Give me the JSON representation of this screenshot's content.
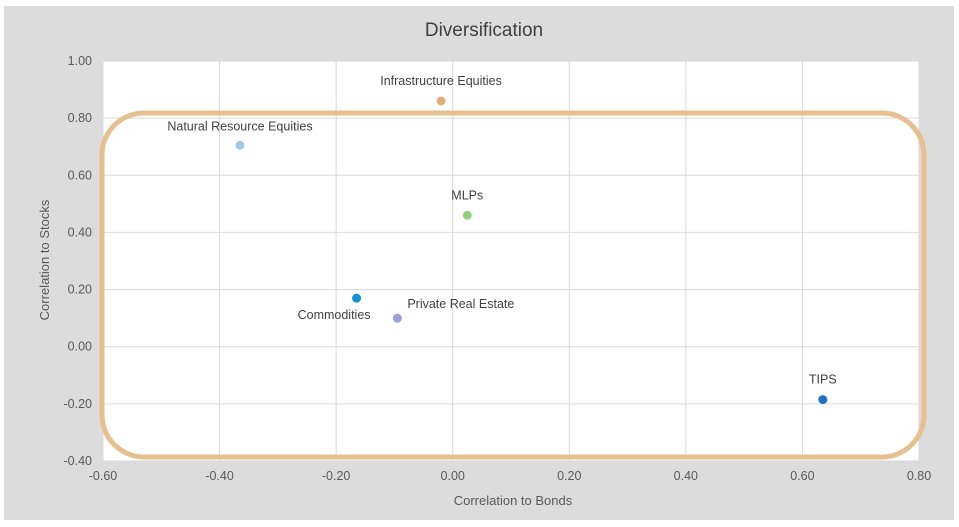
{
  "chart_data": {
    "type": "scatter",
    "title": "Diversification",
    "xlabel": "Correlation to Bonds",
    "ylabel": "Correlation to Stocks",
    "xlim": [
      -0.6,
      0.8
    ],
    "ylim": [
      -0.4,
      1.0
    ],
    "x_ticks": [
      "-0.60",
      "-0.40",
      "-0.20",
      "0.00",
      "0.20",
      "0.40",
      "0.60",
      "0.80"
    ],
    "y_ticks": [
      "1.00",
      "0.80",
      "0.60",
      "0.40",
      "0.20",
      "0.00",
      "-0.20",
      "-0.40"
    ],
    "grid": true,
    "highlight_box_color": "#e6c08e",
    "points": [
      {
        "label": "Infrastructure Equities",
        "x": -0.02,
        "y": 0.86,
        "color": "#ddb07c"
      },
      {
        "label": "Natural Resource Equities",
        "x": -0.365,
        "y": 0.705,
        "color": "#9dcbea"
      },
      {
        "label": "MLPs",
        "x": 0.025,
        "y": 0.46,
        "color": "#92d07a"
      },
      {
        "label": "Commodities",
        "x": -0.165,
        "y": 0.17,
        "color": "#1493d4"
      },
      {
        "label": "Private Real Estate",
        "x": -0.095,
        "y": 0.1,
        "color": "#9aa0d8"
      },
      {
        "label": "TIPS",
        "x": 0.635,
        "y": -0.185,
        "color": "#1e73c2"
      }
    ]
  }
}
